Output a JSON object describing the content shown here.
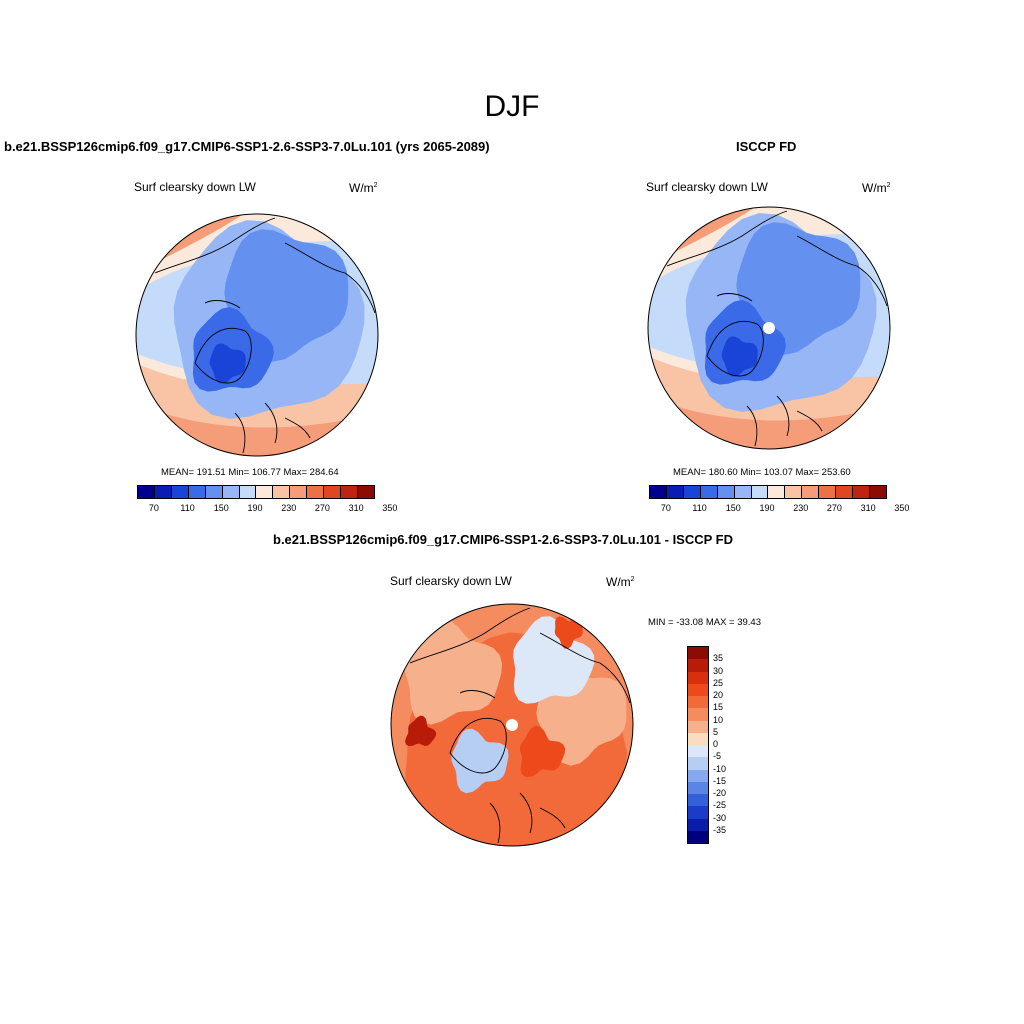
{
  "figure": {
    "title": "DJF"
  },
  "panels": [
    {
      "title": "b.e21.BSSP126cmip6.f09_g17.CMIP6-SSP1-2.6-SSP3-7.0Lu.101 (yrs 2065-2089)",
      "variable": "Surf clearsky down LW",
      "units_base": "W/m",
      "units_exp": "2",
      "stats": "MEAN= 191.51  Min= 106.77  Max= 284.64",
      "mean": 191.51,
      "min": 106.77,
      "max": 284.64
    },
    {
      "title": "ISCCP FD",
      "variable": "Surf clearsky down LW",
      "units_base": "W/m",
      "units_exp": "2",
      "stats": "MEAN= 180.60  Min= 103.07  Max= 253.60",
      "mean": 180.6,
      "min": 103.07,
      "max": 253.6
    },
    {
      "title": "b.e21.BSSP126cmip6.f09_g17.CMIP6-SSP1-2.6-SSP3-7.0Lu.101 - ISCCP FD",
      "variable": "Surf clearsky down LW",
      "units_base": "W/m",
      "units_exp": "2",
      "stats": "MIN = -33.08 MAX =  39.43",
      "min": -33.08,
      "max": 39.43
    }
  ],
  "colorbar_abs": {
    "colors": [
      "#00008f",
      "#0a1cb4",
      "#1a44d8",
      "#3a6ae8",
      "#6490f0",
      "#96b6f6",
      "#c4dcfa",
      "#fbe9dc",
      "#f9c3a6",
      "#f59c78",
      "#ee7045",
      "#e0461f",
      "#c02410",
      "#8c0c04"
    ],
    "labels": [
      "70",
      "110",
      "150",
      "190",
      "230",
      "270",
      "310",
      "350"
    ]
  },
  "colorbar_diff": {
    "colors": [
      "#8c0c04",
      "#b81c08",
      "#d8300f",
      "#ec4a1a",
      "#f36a3a",
      "#f58c60",
      "#f7b08c",
      "#fbdcc0",
      "#dce8f8",
      "#b6cdf4",
      "#86a8ee",
      "#5a84e6",
      "#3460dc",
      "#1a3cc8",
      "#0a1ca8",
      "#00007f"
    ],
    "labels": [
      "35",
      "30",
      "25",
      "20",
      "15",
      "10",
      "5",
      "0",
      "-5",
      "-10",
      "-15",
      "-20",
      "-25",
      "-30",
      "-35"
    ]
  }
}
